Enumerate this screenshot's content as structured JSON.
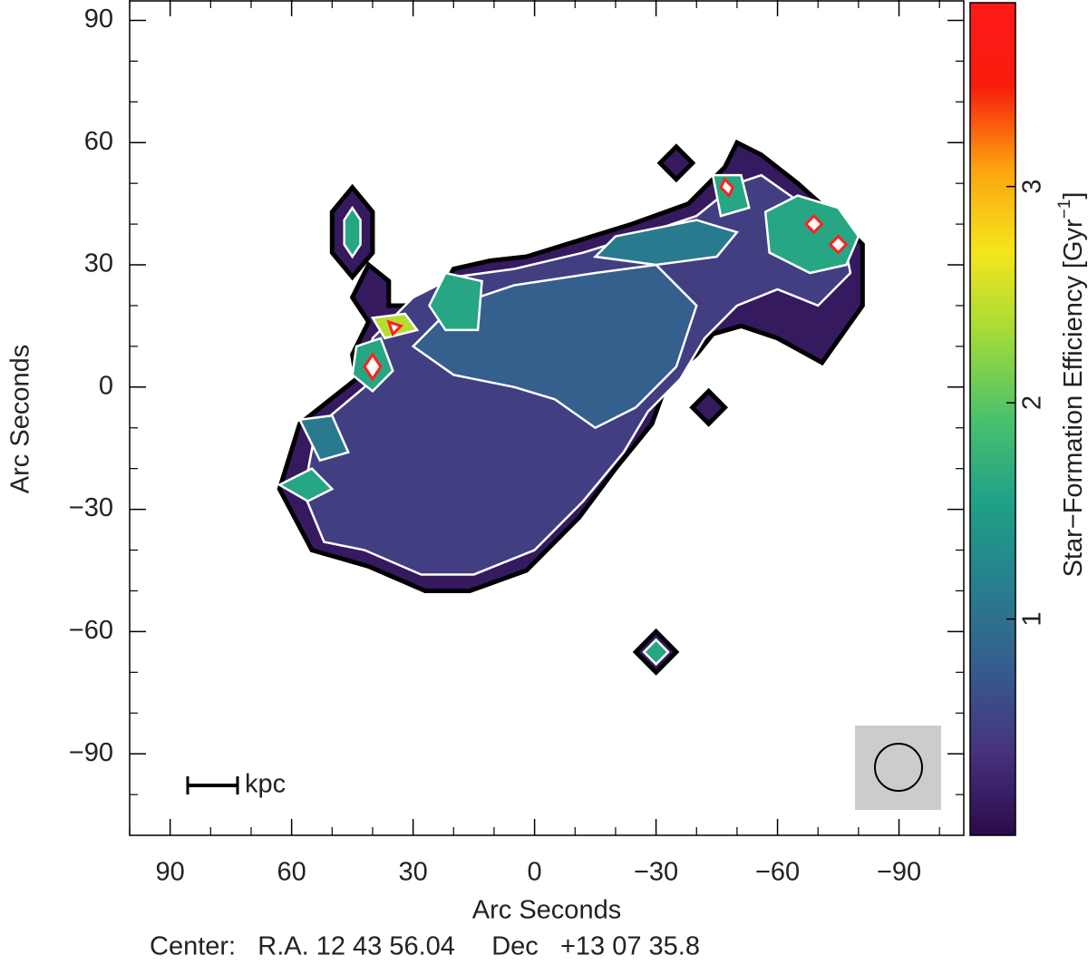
{
  "chart_data": {
    "type": "contour-map",
    "xlabel": "Arc Seconds",
    "ylabel": "Arc Seconds",
    "annotation": "Center:   R.A. 12 43 56.04     Dec   +13 07 35.8",
    "scale_bar_label": "kpc",
    "xlim": [
      100,
      -106
    ],
    "ylim": [
      -110,
      95
    ],
    "xticks": [
      {
        "value": 90,
        "label": "90"
      },
      {
        "value": 60,
        "label": "60"
      },
      {
        "value": 30,
        "label": "30"
      },
      0,
      {
        "value": -30,
        "label": "−30"
      },
      {
        "value": -60,
        "label": "−60"
      },
      {
        "value": -90,
        "label": "−90"
      }
    ],
    "yticks": [
      {
        "value": 90,
        "label": "90"
      },
      {
        "value": 60,
        "label": "60"
      },
      {
        "value": 30,
        "label": "30"
      },
      0,
      {
        "value": -30,
        "label": "−30"
      },
      {
        "value": -60,
        "label": "−60"
      },
      {
        "value": -90,
        "label": "−90"
      }
    ],
    "xminorticks": [
      100,
      80,
      70,
      50,
      40,
      20,
      10,
      -10,
      -20,
      -40,
      -50,
      -70,
      -80,
      -100
    ],
    "yminorticks": [
      80,
      70,
      50,
      40,
      20,
      10,
      -10,
      -20,
      -40,
      -50,
      -70,
      -80,
      -100
    ],
    "colorbar": {
      "label": [
        "Star−Formation Efficiency  [Gyr",
        "−1",
        "]"
      ],
      "clim": [
        0,
        3.85
      ],
      "ticks": [
        1,
        2,
        3
      ],
      "colormap": [
        "#2c0a4b",
        "#46327e",
        "#365c8d",
        "#277f8e",
        "#1fa187",
        "#4ac16d",
        "#a0da39",
        "#f5e61b",
        "#fca40f",
        "#f81c0c",
        "#ff1a1a"
      ]
    },
    "contours": [
      {
        "level": 0.15,
        "points": [
          [
            55,
            -40
          ],
          [
            63,
            -25
          ],
          [
            58,
            -9
          ],
          [
            44,
            2
          ],
          [
            45,
            8
          ],
          [
            41,
            16
          ],
          [
            45,
            22
          ],
          [
            41,
            30
          ],
          [
            36,
            26
          ],
          [
            36,
            20
          ],
          [
            25,
            20
          ],
          [
            20,
            29
          ],
          [
            11,
            31
          ],
          [
            2,
            32
          ],
          [
            -11,
            36
          ],
          [
            -24,
            40
          ],
          [
            -38,
            45
          ],
          [
            -47,
            54
          ],
          [
            -50,
            60
          ],
          [
            -56,
            57
          ],
          [
            -65,
            50
          ],
          [
            -74,
            42
          ],
          [
            -81,
            35
          ],
          [
            -81,
            20
          ],
          [
            -71,
            6
          ],
          [
            -60,
            12
          ],
          [
            -51,
            15
          ],
          [
            -44,
            13
          ],
          [
            -40,
            8
          ],
          [
            -33,
            2
          ],
          [
            -29,
            -9
          ],
          [
            -20,
            -20
          ],
          [
            -11,
            -32
          ],
          [
            2,
            -45
          ],
          [
            16,
            -50
          ],
          [
            27,
            -50
          ],
          [
            41,
            -44
          ]
        ]
      },
      {
        "level": 0.15,
        "points": [
          [
            45,
            49
          ],
          [
            50,
            43
          ],
          [
            50,
            33
          ],
          [
            45,
            27
          ],
          [
            40,
            33
          ],
          [
            40,
            43
          ]
        ]
      },
      {
        "level": 0.15,
        "points": [
          [
            -30,
            -60
          ],
          [
            -25,
            -65
          ],
          [
            -30,
            -70
          ],
          [
            -35,
            -65
          ]
        ]
      },
      {
        "level": 0.15,
        "points": [
          [
            -43,
            -1
          ],
          [
            -39,
            -5
          ],
          [
            -43,
            -9
          ],
          [
            -47,
            -5
          ]
        ]
      },
      {
        "level": 0.15,
        "points": [
          [
            -35,
            59
          ],
          [
            -39,
            55
          ],
          [
            -35,
            51
          ],
          [
            -31,
            55
          ]
        ]
      },
      {
        "level": 0.5,
        "points": [
          [
            52,
            -38
          ],
          [
            57,
            -26
          ],
          [
            54,
            -10
          ],
          [
            42,
            0
          ],
          [
            40,
            12
          ],
          [
            30,
            22
          ],
          [
            20,
            27
          ],
          [
            5,
            29
          ],
          [
            -12,
            33
          ],
          [
            -25,
            37
          ],
          [
            -40,
            42
          ],
          [
            -50,
            50
          ],
          [
            -56,
            52
          ],
          [
            -66,
            45
          ],
          [
            -76,
            38
          ],
          [
            -78,
            28
          ],
          [
            -70,
            20
          ],
          [
            -60,
            24
          ],
          [
            -50,
            20
          ],
          [
            -42,
            12
          ],
          [
            -36,
            2
          ],
          [
            -28,
            -6
          ],
          [
            -22,
            -16
          ],
          [
            -12,
            -28
          ],
          [
            0,
            -40
          ],
          [
            15,
            -46
          ],
          [
            28,
            -46
          ],
          [
            42,
            -40
          ]
        ]
      },
      {
        "level": 0.8,
        "points": [
          [
            30,
            10
          ],
          [
            20,
            20
          ],
          [
            5,
            25
          ],
          [
            -15,
            28
          ],
          [
            -30,
            30
          ],
          [
            -40,
            20
          ],
          [
            -35,
            5
          ],
          [
            -25,
            -5
          ],
          [
            -15,
            -10
          ],
          [
            -5,
            -3
          ],
          [
            5,
            0
          ],
          [
            20,
            3
          ]
        ]
      },
      {
        "level": 1.1,
        "points": [
          [
            -20,
            37
          ],
          [
            -40,
            41
          ],
          [
            -50,
            38
          ],
          [
            -45,
            32
          ],
          [
            -30,
            30
          ],
          [
            -15,
            32
          ]
        ]
      },
      {
        "level": 1.1,
        "points": [
          [
            58,
            -8
          ],
          [
            50,
            -7
          ],
          [
            46,
            -16
          ],
          [
            53,
            -18
          ]
        ]
      },
      {
        "level": 1.6,
        "points": [
          [
            -57,
            43
          ],
          [
            -65,
            47
          ],
          [
            -75,
            44
          ],
          [
            -80,
            37
          ],
          [
            -77,
            30
          ],
          [
            -68,
            28
          ],
          [
            -58,
            33
          ]
        ]
      },
      {
        "level": 1.6,
        "points": [
          [
            -44,
            52
          ],
          [
            -51,
            52
          ],
          [
            -53,
            44
          ],
          [
            -46,
            42
          ]
        ]
      },
      {
        "level": 1.6,
        "points": [
          [
            22,
            28
          ],
          [
            13,
            26
          ],
          [
            14,
            14
          ],
          [
            22,
            14
          ],
          [
            26,
            20
          ]
        ]
      },
      {
        "level": 1.6,
        "points": [
          [
            44,
            10
          ],
          [
            38,
            12
          ],
          [
            35,
            4
          ],
          [
            40,
            -1
          ],
          [
            45,
            3
          ]
        ]
      },
      {
        "level": 1.6,
        "points": [
          [
            63,
            -24
          ],
          [
            55,
            -20
          ],
          [
            50,
            -25
          ],
          [
            56,
            -28
          ]
        ]
      },
      {
        "level": 1.6,
        "points": [
          [
            45,
            44
          ],
          [
            47,
            41
          ],
          [
            47,
            35
          ],
          [
            45,
            32
          ],
          [
            43,
            35
          ],
          [
            43,
            41
          ]
        ]
      },
      {
        "level": 1.6,
        "points": [
          [
            -30,
            -62
          ],
          [
            -27,
            -65
          ],
          [
            -30,
            -68
          ],
          [
            -33,
            -65
          ]
        ]
      },
      {
        "level": 2.4,
        "points": [
          [
            40,
            17
          ],
          [
            32,
            18
          ],
          [
            29,
            14
          ],
          [
            37,
            12
          ]
        ]
      },
      {
        "level": 3.6,
        "points": [
          [
            -69,
            42
          ],
          [
            -67,
            40
          ],
          [
            -69,
            38
          ],
          [
            -71,
            40
          ]
        ]
      },
      {
        "level": 3.6,
        "points": [
          [
            -75,
            37
          ],
          [
            -73,
            35
          ],
          [
            -75,
            33
          ],
          [
            -77,
            35
          ]
        ]
      },
      {
        "level": 3.6,
        "points": [
          [
            -47,
            51
          ],
          [
            -46,
            49
          ],
          [
            -48,
            47
          ],
          [
            -49,
            49
          ]
        ]
      },
      {
        "level": 3.6,
        "points": [
          [
            36,
            16
          ],
          [
            33,
            15
          ],
          [
            35,
            13
          ]
        ]
      },
      {
        "level": 3.6,
        "points": [
          [
            40,
            8
          ],
          [
            42,
            5
          ],
          [
            40,
            2
          ],
          [
            38,
            5
          ]
        ]
      }
    ]
  }
}
